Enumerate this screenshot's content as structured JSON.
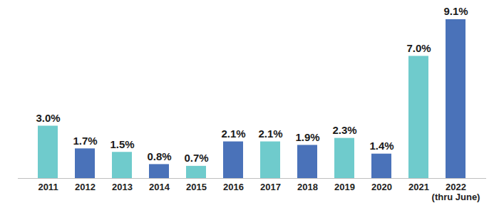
{
  "chart_data": {
    "type": "bar",
    "categories": [
      "2011",
      "2012",
      "2013",
      "2014",
      "2015",
      "2016",
      "2017",
      "2018",
      "2019",
      "2020",
      "2021",
      "2022\n(thru June)"
    ],
    "values": [
      3.0,
      1.7,
      1.5,
      0.8,
      0.7,
      2.1,
      2.1,
      1.9,
      2.3,
      1.4,
      7.0,
      9.1
    ],
    "value_labels": [
      "3.0%",
      "1.7%",
      "1.5%",
      "0.8%",
      "0.7%",
      "2.1%",
      "2.1%",
      "1.9%",
      "2.3%",
      "1.4%",
      "7.0%",
      "9.1%"
    ],
    "colors": [
      "#6fcbcc",
      "#4a72b9",
      "#6fcbcc",
      "#4a72b9",
      "#6fcbcc",
      "#4a72b9",
      "#6fcbcc",
      "#4a72b9",
      "#6fcbcc",
      "#4a72b9",
      "#6fcbcc",
      "#4a72b9"
    ],
    "data_labels": true,
    "tick_labels": "x"
  }
}
